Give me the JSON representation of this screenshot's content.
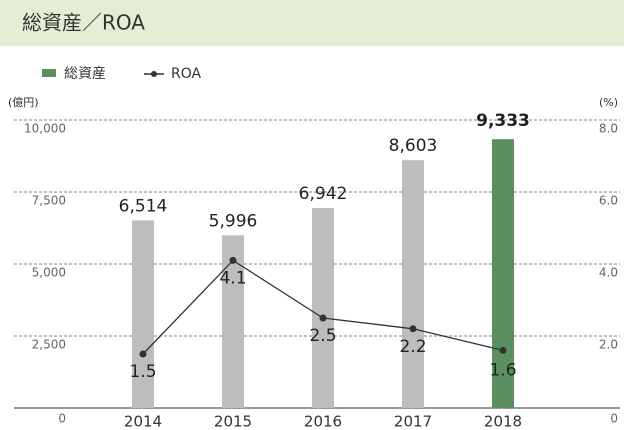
{
  "chart_data": {
    "type": "bar_line",
    "title": "総資産／ROA",
    "y_unit": "(億円)",
    "y2_unit": "(%)",
    "categories": [
      "2014",
      "2015",
      "2016",
      "2017",
      "2018"
    ],
    "series": [
      {
        "name": "総資産",
        "kind": "bar",
        "color": "#5b8f60",
        "bar_colors": [
          "#bdbdbf",
          "#bdbdbf",
          "#bdbdbf",
          "#bdbdbf",
          "#5b8f60"
        ],
        "values": [
          6514,
          5996,
          6942,
          8603,
          9333
        ],
        "value_labels": [
          "6,514",
          "5,996",
          "6,942",
          "8,603",
          "9,333"
        ]
      },
      {
        "name": "ROA",
        "kind": "line",
        "axis": "y2",
        "color": "#333333",
        "values": [
          1.5,
          4.1,
          2.5,
          2.2,
          1.6
        ]
      }
    ],
    "ylim": [
      0,
      10000
    ],
    "yticks": [
      0,
      {
        "value": 2500,
        "label": "2,500"
      },
      {
        "value": 5000,
        "label": "5,000"
      },
      {
        "value": 7500,
        "label": "7,500"
      },
      {
        "value": 10000,
        "label": "10,000"
      }
    ],
    "y2lim": [
      0,
      8
    ],
    "y2ticks": [
      0,
      {
        "value": 2,
        "label": "2.0"
      },
      {
        "value": 4,
        "label": "4.0"
      },
      {
        "value": 6,
        "label": "6.0"
      },
      {
        "value": 8,
        "label": "8.0"
      }
    ],
    "grid": true
  }
}
